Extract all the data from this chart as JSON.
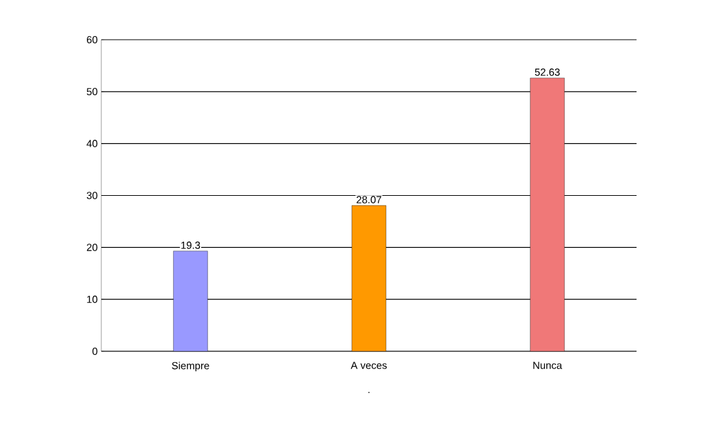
{
  "chart_data": {
    "type": "bar",
    "categories": [
      "Siempre",
      "A veces",
      "Nunca"
    ],
    "values": [
      19.3,
      28.07,
      52.63
    ],
    "colors": [
      "#9999ff",
      "#ff9900",
      "#f07878"
    ],
    "xlabel": ".",
    "ylim": [
      0,
      60
    ],
    "yticks": [
      0,
      10,
      20,
      30,
      40,
      50,
      60
    ],
    "grid": "y",
    "data_labels": true
  }
}
